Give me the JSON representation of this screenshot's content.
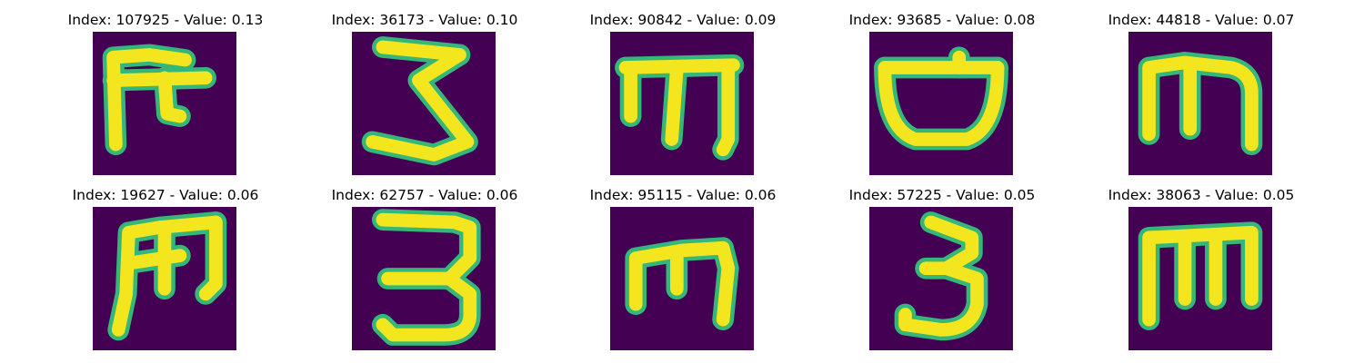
{
  "figure": {
    "colors": {
      "background": "#440154",
      "stroke": "#f4e61e",
      "edge": "#35b779"
    },
    "panels": [
      {
        "title": "Index: 107925 - Value: 0.13",
        "glyph": "glyph-f-shape"
      },
      {
        "title": "Index: 36173 - Value: 0.10",
        "glyph": "glyph-three-zigzag"
      },
      {
        "title": "Index: 90842 - Value: 0.09",
        "glyph": "glyph-m-shape"
      },
      {
        "title": "Index: 93685 - Value: 0.08",
        "glyph": "glyph-bowl-shape"
      },
      {
        "title": "Index: 44818 - Value: 0.07",
        "glyph": "glyph-m-shape"
      },
      {
        "title": "Index: 19627 - Value: 0.06",
        "glyph": "glyph-m-slanted"
      },
      {
        "title": "Index: 62757 - Value: 0.06",
        "glyph": "glyph-three"
      },
      {
        "title": "Index: 95115 - Value: 0.06",
        "glyph": "glyph-m-shape"
      },
      {
        "title": "Index: 57225 - Value: 0.05",
        "glyph": "glyph-three"
      },
      {
        "title": "Index: 38063 - Value: 0.05",
        "glyph": "glyph-m-shape"
      }
    ]
  }
}
